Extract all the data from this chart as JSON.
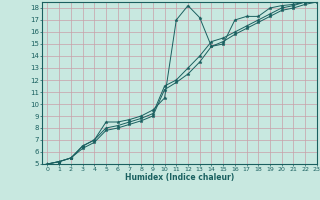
{
  "xlabel": "Humidex (Indice chaleur)",
  "bg_color": "#c8e8e0",
  "line_color": "#1a6060",
  "grid_color": "#c8a0a8",
  "xlim": [
    -0.5,
    23
  ],
  "ylim": [
    5,
    18.5
  ],
  "xticks": [
    0,
    1,
    2,
    3,
    4,
    5,
    6,
    7,
    8,
    9,
    10,
    11,
    12,
    13,
    14,
    15,
    16,
    17,
    18,
    19,
    20,
    21,
    22,
    23
  ],
  "yticks": [
    5,
    6,
    7,
    8,
    9,
    10,
    11,
    12,
    13,
    14,
    15,
    16,
    17,
    18
  ],
  "line1_x": [
    0,
    1,
    2,
    3,
    4,
    5,
    6,
    7,
    8,
    9,
    10,
    11,
    12,
    13,
    14,
    15,
    16,
    17,
    18,
    19,
    20,
    21,
    22,
    23
  ],
  "line1_y": [
    5.0,
    5.2,
    5.5,
    6.5,
    7.0,
    8.5,
    8.5,
    8.7,
    9.0,
    9.5,
    10.5,
    17.0,
    18.2,
    17.2,
    14.8,
    15.0,
    17.0,
    17.3,
    17.3,
    18.0,
    18.2,
    18.3,
    18.5,
    18.7
  ],
  "line2_x": [
    0,
    1,
    2,
    3,
    4,
    5,
    6,
    7,
    8,
    9,
    10,
    11,
    12,
    13,
    14,
    15,
    16,
    17,
    18,
    19,
    20,
    21,
    22,
    23
  ],
  "line2_y": [
    5.0,
    5.2,
    5.5,
    6.5,
    7.0,
    8.0,
    8.2,
    8.5,
    8.8,
    9.2,
    11.5,
    12.0,
    13.0,
    14.0,
    15.2,
    15.5,
    16.0,
    16.5,
    17.0,
    17.5,
    18.0,
    18.2,
    18.5,
    18.7
  ],
  "line3_x": [
    0,
    1,
    2,
    3,
    4,
    5,
    6,
    7,
    8,
    9,
    10,
    11,
    12,
    13,
    14,
    15,
    16,
    17,
    18,
    19,
    20,
    21,
    22,
    23
  ],
  "line3_y": [
    5.0,
    5.2,
    5.5,
    6.3,
    6.8,
    7.8,
    8.0,
    8.3,
    8.6,
    9.0,
    11.2,
    11.8,
    12.5,
    13.5,
    14.8,
    15.2,
    15.8,
    16.3,
    16.8,
    17.3,
    17.8,
    18.0,
    18.3,
    18.5
  ]
}
